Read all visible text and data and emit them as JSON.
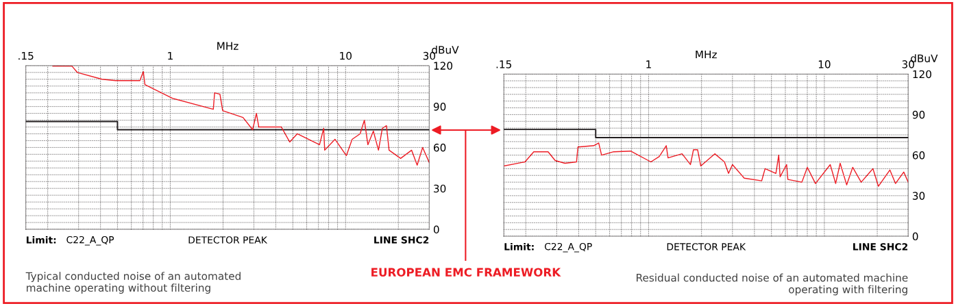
{
  "chart_data": [
    {
      "type": "line",
      "xlabel": "MHz",
      "ylabel": "dBuV",
      "log": "x",
      "grid": true,
      "xlim": [
        0.15,
        30
      ],
      "xticks": [
        {
          "value": 0.15,
          "label": ".15"
        },
        1,
        10,
        30
      ],
      "ylim": [
        0,
        120
      ],
      "yticks": [
        0,
        30,
        60,
        90,
        120
      ],
      "series": [
        {
          "type": "step",
          "color": "#231f20",
          "x": [
            0.15,
            0.5,
            30
          ],
          "values": [
            79,
            73,
            73
          ]
        },
        {
          "color": "#ed1c24",
          "x": [
            0.214,
            0.275,
            0.295,
            0.408,
            0.488,
            0.671,
            0.702,
            0.717,
            1.03,
            1.76,
            1.79,
            1.92,
            1.99,
            2.6,
            2.95,
            3.1,
            3.2,
            4.3,
            4.8,
            5.3,
            7.1,
            7.5,
            7.6,
            8.7,
            10.1,
            10.9,
            12.1,
            12.8,
            13.4,
            14.4,
            15.4,
            16.2,
            17.1,
            17.7,
            20.6,
            23.8,
            25.6,
            27.5,
            30
          ],
          "values": [
            119.6,
            119.6,
            115,
            110,
            109,
            109,
            115.6,
            106,
            96,
            88,
            100,
            99,
            87,
            82,
            73,
            85,
            75,
            75,
            64,
            70,
            62,
            74,
            58,
            66,
            54,
            66,
            70,
            80,
            62,
            72,
            58,
            74,
            76,
            58,
            52,
            58,
            47,
            60,
            49
          ]
        }
      ],
      "annotations": [
        "Limit:",
        "C22_A_QP",
        "DETECTOR PEAK",
        "LINE SHC2",
        "Typical conducted noise of an automated\nmachine operating without filtering",
        "EUROPEAN EMC FRAMEWORK"
      ]
    },
    {
      "type": "line",
      "xlabel": "MHz",
      "ylabel": "dBuV",
      "log": "x",
      "grid": true,
      "xlim": [
        0.15,
        30
      ],
      "xticks": [
        {
          "value": 0.15,
          "label": ".15"
        },
        1,
        10,
        30
      ],
      "ylim": [
        0,
        120
      ],
      "yticks": [
        0,
        30,
        60,
        90,
        120
      ],
      "series": [
        {
          "type": "step",
          "color": "#231f20",
          "x": [
            0.15,
            0.5,
            30
          ],
          "values": [
            79,
            73,
            73
          ]
        },
        {
          "color": "#ed1c24",
          "x": [
            0.15,
            0.198,
            0.222,
            0.268,
            0.294,
            0.334,
            0.389,
            0.396,
            0.487,
            0.52,
            0.54,
            0.633,
            0.79,
            1.03,
            1.15,
            1.26,
            1.29,
            1.55,
            1.73,
            1.8,
            1.9,
            1.98,
            2.38,
            2.7,
            2.85,
            3.0,
            3.5,
            4.4,
            4.6,
            5.3,
            5.5,
            5.6,
            6.1,
            6.2,
            7.45,
            8.0,
            8.9,
            10.8,
            11.6,
            12.3,
            13.4,
            14.5,
            16.2,
            18.9,
            20.3,
            23.6,
            25.4,
            28.3,
            30
          ],
          "values": [
            52,
            55,
            62.5,
            62.5,
            56,
            54,
            55,
            66,
            67,
            69,
            60,
            62.5,
            63,
            55,
            59,
            67,
            58,
            61,
            53,
            64,
            64,
            52,
            61,
            55,
            46.5,
            53,
            43,
            41,
            50,
            46.5,
            60,
            44,
            53,
            42,
            40,
            51,
            39,
            53,
            39,
            54,
            38,
            51,
            40,
            50,
            37,
            49,
            39,
            47.5,
            40
          ]
        }
      ],
      "annotations": [
        "Limit:",
        "C22_A_QP",
        "DETECTOR PEAK",
        "LINE SHC2",
        "Residual conducted noise of an automated machine\noperating with filtering"
      ]
    }
  ]
}
